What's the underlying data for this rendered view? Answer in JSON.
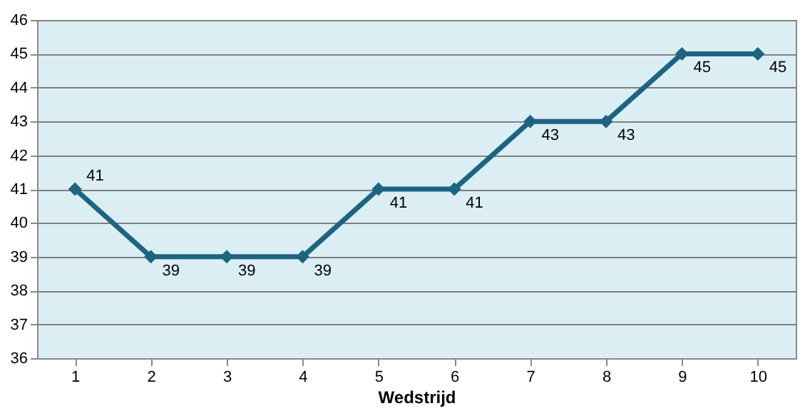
{
  "chart_data": {
    "type": "line",
    "xlabel": "Wedstrijd",
    "categories": [
      "1",
      "2",
      "3",
      "4",
      "5",
      "6",
      "7",
      "8",
      "9",
      "10"
    ],
    "series": [
      {
        "color": "#1d6482",
        "values": [
          41,
          39,
          39,
          39,
          41,
          41,
          43,
          43,
          45,
          45
        ]
      }
    ],
    "ylim": [
      36,
      46
    ],
    "yticks": [
      36,
      37,
      38,
      39,
      40,
      41,
      42,
      43,
      44,
      45,
      46
    ],
    "grid": "y",
    "marker": "diamond",
    "line_style": "solid",
    "data_labels": true
  }
}
